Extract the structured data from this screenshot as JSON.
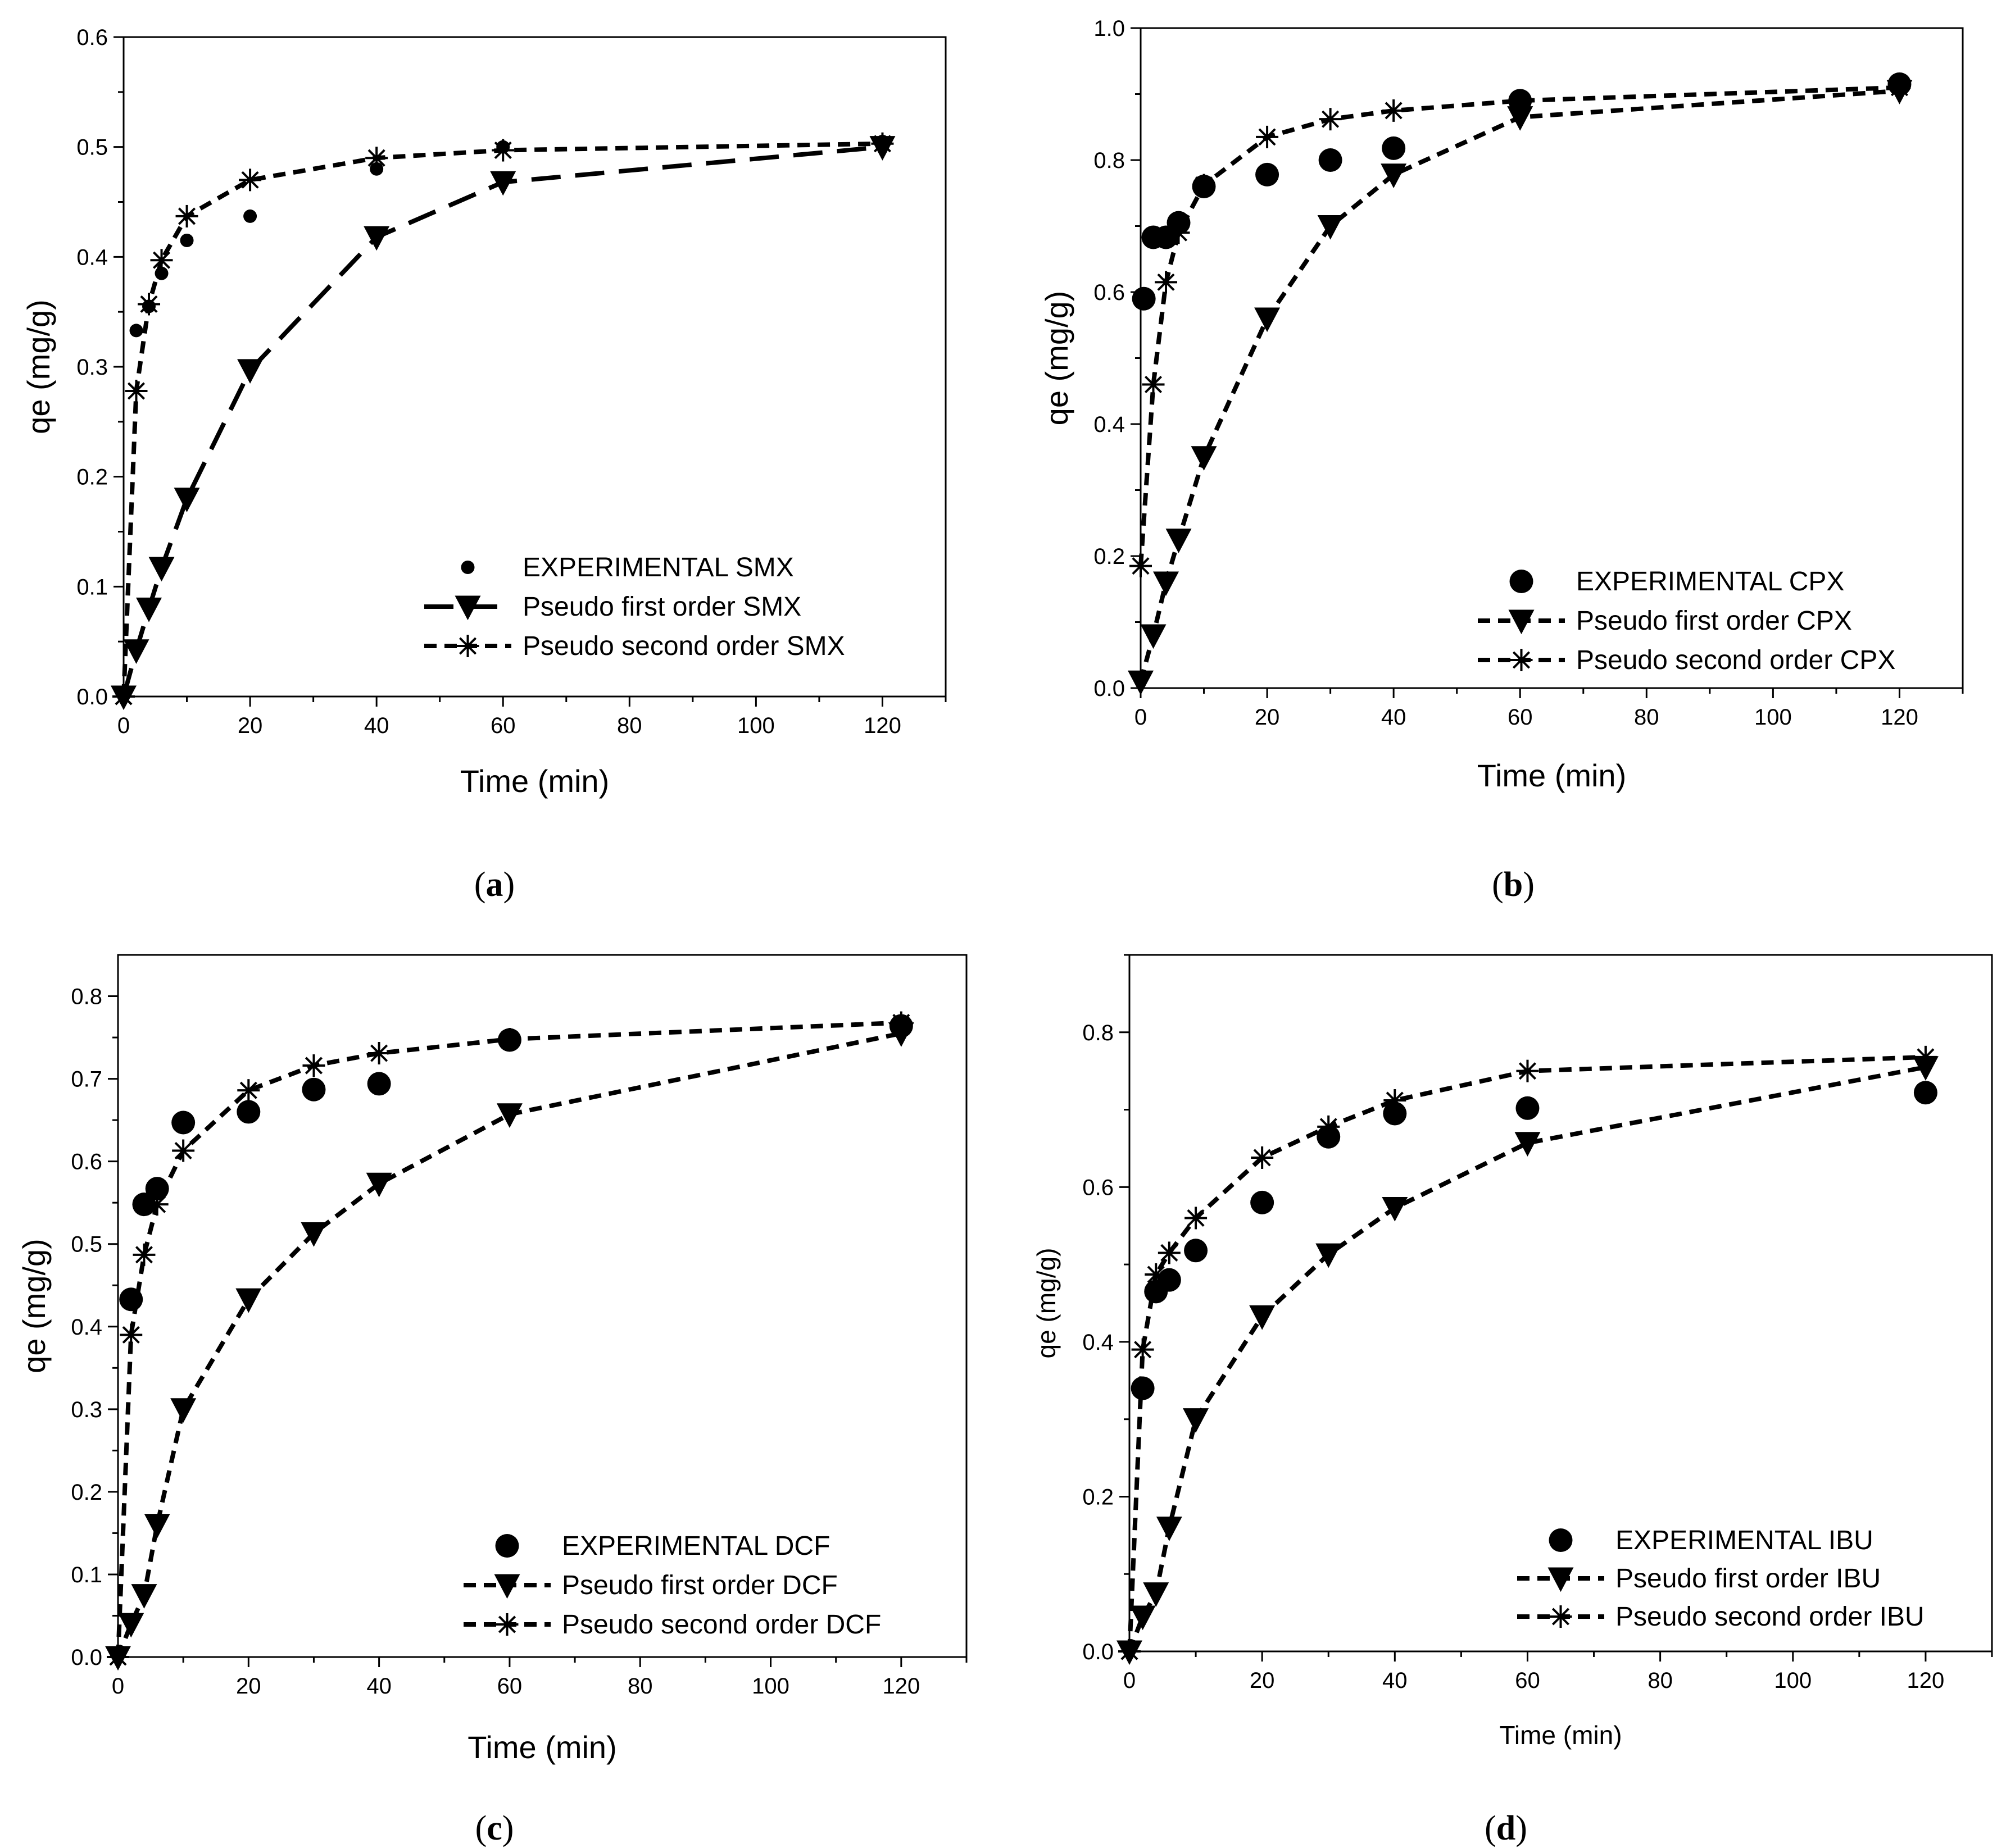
{
  "chart_data": [
    {
      "panel_label": "a",
      "type": "scatter",
      "xlabel": "Time (min)",
      "ylabel": "qe (mg/g)",
      "xlim": [
        0,
        130
      ],
      "ylim": [
        0,
        0.6
      ],
      "xticks": [
        "0",
        "20",
        "40",
        "60",
        "80",
        "100",
        "120"
      ],
      "yticks": [
        "0.0",
        "0.1",
        "0.2",
        "0.3",
        "0.4",
        "0.5",
        "0.6"
      ],
      "legend_position": "bottom-right",
      "series": [
        {
          "name": "EXPERIMENTAL SMX",
          "marker": "dot",
          "x": [
            2,
            4,
            6,
            10,
            20,
            40,
            60,
            120
          ],
          "y": [
            0.333,
            0.355,
            0.385,
            0.415,
            0.437,
            0.48,
            0.5,
            0.505
          ]
        },
        {
          "name": "Pseudo first order SMX",
          "marker": "triangle",
          "line": "longdash",
          "x": [
            0,
            2,
            4,
            6,
            10,
            20,
            40,
            60,
            120
          ],
          "y": [
            0.0,
            0.042,
            0.08,
            0.117,
            0.18,
            0.297,
            0.418,
            0.468,
            0.5
          ]
        },
        {
          "name": "Pseudo second order SMX",
          "marker": "star",
          "line": "dash",
          "x": [
            0,
            2,
            4,
            6,
            10,
            20,
            40,
            60,
            120
          ],
          "y": [
            0.0,
            0.278,
            0.357,
            0.397,
            0.437,
            0.47,
            0.49,
            0.497,
            0.503
          ]
        }
      ]
    },
    {
      "panel_label": "b",
      "type": "scatter",
      "xlabel": "Time (min)",
      "ylabel": "qe (mg/g)",
      "xlim": [
        0,
        130
      ],
      "ylim": [
        0,
        1.0
      ],
      "xticks": [
        "0",
        "20",
        "40",
        "60",
        "80",
        "100",
        "120"
      ],
      "yticks": [
        "0.0",
        "0.2",
        "0.4",
        "0.6",
        "0.8",
        "1.0"
      ],
      "legend_position": "bottom-right",
      "series": [
        {
          "name": "EXPERIMENTAL CPX",
          "marker": "bigdot",
          "x": [
            0.5,
            2,
            4,
            6,
            10,
            20,
            30,
            40,
            60,
            120
          ],
          "y": [
            0.59,
            0.683,
            0.683,
            0.705,
            0.76,
            0.778,
            0.8,
            0.818,
            0.89,
            0.915
          ]
        },
        {
          "name": "Pseudo first order CPX",
          "marker": "triangle",
          "line": "dash",
          "x": [
            0,
            2,
            4,
            6,
            10,
            20,
            30,
            40,
            60,
            120
          ],
          "y": [
            0.01,
            0.08,
            0.16,
            0.225,
            0.35,
            0.56,
            0.7,
            0.778,
            0.865,
            0.905
          ]
        },
        {
          "name": "Pseudo second order CPX",
          "marker": "star",
          "line": "dash",
          "x": [
            0,
            2,
            4,
            6,
            10,
            20,
            30,
            40,
            60,
            120
          ],
          "y": [
            0.185,
            0.46,
            0.615,
            0.69,
            0.762,
            0.835,
            0.862,
            0.875,
            0.89,
            0.91
          ]
        }
      ]
    },
    {
      "panel_label": "c",
      "type": "scatter",
      "xlabel": "Time (min)",
      "ylabel": "qe (mg/g)",
      "xlim": [
        0,
        130
      ],
      "ylim": [
        0,
        0.85
      ],
      "xticks": [
        "0",
        "20",
        "40",
        "60",
        "80",
        "100",
        "120"
      ],
      "yticks": [
        "0.0",
        "0.1",
        "0.2",
        "0.3",
        "0.4",
        "0.5",
        "0.6",
        "0.7",
        "0.8"
      ],
      "legend_position": "bottom-right",
      "series": [
        {
          "name": "EXPERIMENTAL DCF",
          "marker": "bigdot",
          "x": [
            2,
            4,
            6,
            10,
            20,
            30,
            40,
            60,
            120
          ],
          "y": [
            0.433,
            0.548,
            0.567,
            0.647,
            0.66,
            0.687,
            0.694,
            0.747,
            0.764
          ]
        },
        {
          "name": "Pseudo first order DCF",
          "marker": "triangle",
          "line": "dash",
          "x": [
            0,
            2,
            4,
            6,
            10,
            20,
            30,
            40,
            60,
            120
          ],
          "y": [
            0.0,
            0.04,
            0.075,
            0.16,
            0.3,
            0.433,
            0.513,
            0.573,
            0.657,
            0.755
          ]
        },
        {
          "name": "Pseudo second order DCF",
          "marker": "star",
          "line": "dash",
          "x": [
            0,
            2,
            4,
            6,
            10,
            20,
            30,
            40,
            60,
            120
          ],
          "y": [
            0.0,
            0.39,
            0.487,
            0.548,
            0.613,
            0.686,
            0.716,
            0.731,
            0.748,
            0.768
          ]
        }
      ]
    },
    {
      "panel_label": "d",
      "type": "scatter",
      "xlabel": "Time (min)",
      "ylabel": "qe (mg/g)",
      "xlim": [
        0,
        130
      ],
      "ylim": [
        0,
        0.9
      ],
      "xticks": [
        "0",
        "20",
        "40",
        "60",
        "80",
        "100",
        "120"
      ],
      "yticks": [
        "0.0",
        "0.2",
        "0.4",
        "0.6",
        "0.8"
      ],
      "legend_position": "bottom-right",
      "series": [
        {
          "name": "EXPERIMENTAL IBU",
          "marker": "bigdot",
          "x": [
            2,
            4,
            6,
            10,
            20,
            30,
            40,
            60,
            120
          ],
          "y": [
            0.34,
            0.465,
            0.48,
            0.518,
            0.58,
            0.665,
            0.695,
            0.702,
            0.722
          ]
        },
        {
          "name": "Pseudo first order IBU",
          "marker": "triangle",
          "line": "dash",
          "x": [
            0,
            2,
            4,
            6,
            10,
            20,
            30,
            40,
            60,
            120
          ],
          "y": [
            0.0,
            0.045,
            0.075,
            0.16,
            0.3,
            0.433,
            0.513,
            0.573,
            0.657,
            0.755
          ]
        },
        {
          "name": "Pseudo second order IBU",
          "marker": "star",
          "line": "dash",
          "x": [
            0,
            2,
            4,
            6,
            10,
            20,
            30,
            40,
            60,
            120
          ],
          "y": [
            0.0,
            0.39,
            0.487,
            0.515,
            0.56,
            0.638,
            0.678,
            0.712,
            0.75,
            0.768
          ]
        }
      ]
    }
  ]
}
